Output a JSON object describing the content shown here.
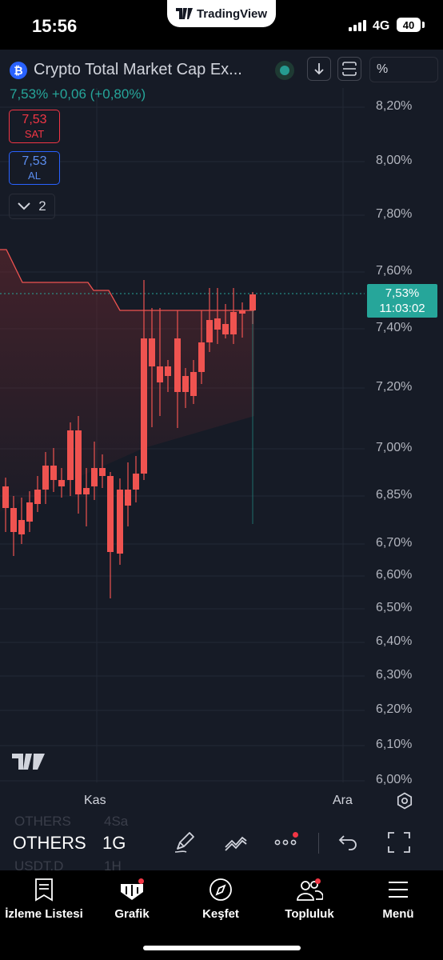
{
  "status_bar": {
    "time": "15:56",
    "app_pill": "TradingView",
    "network": "4G",
    "battery": "40"
  },
  "header": {
    "symbol_title": "Crypto Total Market Cap Ex...",
    "symbol_icon": "₿",
    "compare_field": "%",
    "price_line": "7,53%  +0,06  (+0,80%)"
  },
  "trade": {
    "sell_price": "7,53",
    "sell_label": "SAT",
    "buy_price": "7,53",
    "buy_label": "AL"
  },
  "indicators": {
    "count": "2"
  },
  "chart": {
    "y_labels": [
      "8,20%",
      "8,00%",
      "7,80%",
      "7,60%",
      "7,40%",
      "7,20%",
      "7,00%",
      "6,85%",
      "6,70%",
      "6,60%",
      "6,50%",
      "6,40%",
      "6,30%",
      "6,20%",
      "6,10%",
      "6,00%"
    ],
    "x_labels": [
      "Kas",
      "Ara"
    ],
    "last_price": "7,53%",
    "countdown": "11:03:02",
    "up_color": "#26a69a",
    "down_color": "#ef5350",
    "line_color": "#ef5350"
  },
  "toolbar": {
    "symbol": "OTHERS",
    "interval": "1G",
    "ghost_symbol_1": "OTHERS",
    "ghost_interval_1": "4Sa",
    "ghost_symbol_2": "USDT.D",
    "ghost_interval_2": "1H"
  },
  "tabs": [
    {
      "label": "İzleme Listesi",
      "icon": "watchlist-icon"
    },
    {
      "label": "Grafik",
      "icon": "chart-icon"
    },
    {
      "label": "Keşfet",
      "icon": "compass-icon"
    },
    {
      "label": "Topluluk",
      "icon": "community-icon"
    },
    {
      "label": "Menü",
      "icon": "menu-icon"
    }
  ]
}
